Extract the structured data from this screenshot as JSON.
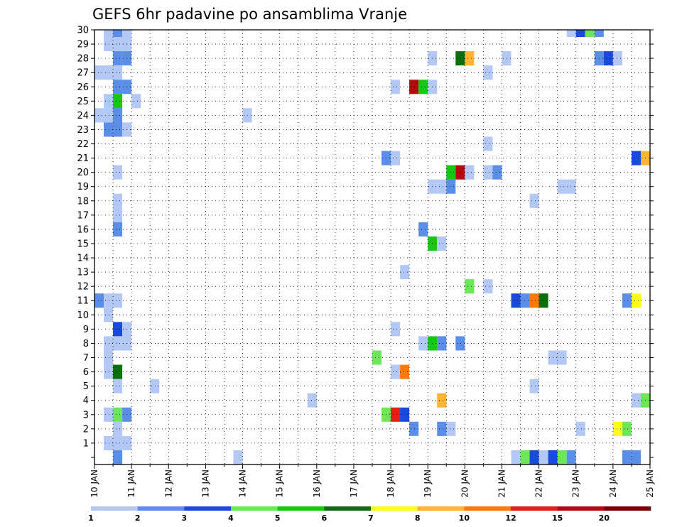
{
  "chart_data": {
    "type": "heatmap",
    "title": "GEFS 6hr padavine po ansamblima Vranje",
    "xlabel": "",
    "ylabel": "",
    "x_tick_labels": [
      "10 JAN",
      "11 JAN",
      "12 JAN",
      "13 JAN",
      "14 JAN",
      "15 JAN",
      "16 JAN",
      "17 JAN",
      "18 JAN",
      "19 JAN",
      "20 JAN",
      "21 JAN",
      "22 JAN",
      "23 JAN",
      "24 JAN",
      "25 JAN"
    ],
    "y_tick_labels": [
      "1",
      "2",
      "3",
      "4",
      "5",
      "6",
      "7",
      "8",
      "9",
      "10",
      "11",
      "12",
      "13",
      "14",
      "15",
      "16",
      "17",
      "18",
      "19",
      "20",
      "21",
      "22",
      "23",
      "24",
      "25",
      "26",
      "27",
      "28",
      "29",
      "30"
    ],
    "xlim_days": [
      10,
      25
    ],
    "ylim_members": [
      0,
      30
    ],
    "time_step_hours": 6,
    "grid": true,
    "colorbar": {
      "position": "bottom",
      "tick_labels": [
        "1",
        "2",
        "3",
        "4",
        "5",
        "6",
        "7",
        "8",
        "10",
        "12",
        "15",
        "20"
      ],
      "colors": [
        "#b4c8f5",
        "#5b8ee6",
        "#1a4ad9",
        "#6ee65a",
        "#14c814",
        "#0a6e0a",
        "#ffff14",
        "#ffb432",
        "#ff780a",
        "#e61e14",
        "#b40a0a",
        "#780000"
      ]
    },
    "cells": [
      {
        "day": 10.25,
        "member": 30,
        "level": 1
      },
      {
        "day": 10.5,
        "member": 30,
        "level": 2
      },
      {
        "day": 10.75,
        "member": 30,
        "level": 1
      },
      {
        "day": 10.25,
        "member": 29,
        "level": 1
      },
      {
        "day": 10.5,
        "member": 29,
        "level": 1
      },
      {
        "day": 10.75,
        "member": 29,
        "level": 1
      },
      {
        "day": 10.5,
        "member": 28,
        "level": 2
      },
      {
        "day": 10.75,
        "member": 28,
        "level": 2
      },
      {
        "day": 10.0,
        "member": 27,
        "level": 1
      },
      {
        "day": 10.25,
        "member": 27,
        "level": 1
      },
      {
        "day": 10.5,
        "member": 27,
        "level": 1
      },
      {
        "day": 10.5,
        "member": 26,
        "level": 2
      },
      {
        "day": 10.75,
        "member": 26,
        "level": 2
      },
      {
        "day": 10.25,
        "member": 25,
        "level": 1
      },
      {
        "day": 10.5,
        "member": 25,
        "level": 5
      },
      {
        "day": 11.0,
        "member": 25,
        "level": 1
      },
      {
        "day": 10.0,
        "member": 24,
        "level": 1
      },
      {
        "day": 10.25,
        "member": 24,
        "level": 1
      },
      {
        "day": 10.5,
        "member": 24,
        "level": 2
      },
      {
        "day": 10.25,
        "member": 23,
        "level": 2
      },
      {
        "day": 10.5,
        "member": 23,
        "level": 2
      },
      {
        "day": 10.75,
        "member": 23,
        "level": 1
      },
      {
        "day": 10.5,
        "member": 20,
        "level": 1
      },
      {
        "day": 10.5,
        "member": 18,
        "level": 1
      },
      {
        "day": 10.5,
        "member": 17,
        "level": 1
      },
      {
        "day": 10.5,
        "member": 16,
        "level": 2
      },
      {
        "day": 10.0,
        "member": 11,
        "level": 2
      },
      {
        "day": 10.25,
        "member": 11,
        "level": 1
      },
      {
        "day": 10.5,
        "member": 11,
        "level": 1
      },
      {
        "day": 10.25,
        "member": 10,
        "level": 1
      },
      {
        "day": 10.5,
        "member": 9,
        "level": 3
      },
      {
        "day": 10.75,
        "member": 9,
        "level": 1
      },
      {
        "day": 10.25,
        "member": 8,
        "level": 1
      },
      {
        "day": 10.5,
        "member": 8,
        "level": 1
      },
      {
        "day": 10.75,
        "member": 8,
        "level": 1
      },
      {
        "day": 10.25,
        "member": 7,
        "level": 1
      },
      {
        "day": 10.25,
        "member": 6,
        "level": 1
      },
      {
        "day": 10.5,
        "member": 6,
        "level": 6
      },
      {
        "day": 10.5,
        "member": 5,
        "level": 1
      },
      {
        "day": 10.25,
        "member": 3,
        "level": 1
      },
      {
        "day": 10.5,
        "member": 3,
        "level": 4
      },
      {
        "day": 10.75,
        "member": 3,
        "level": 2
      },
      {
        "day": 10.5,
        "member": 2,
        "level": 1
      },
      {
        "day": 10.25,
        "member": 1,
        "level": 1
      },
      {
        "day": 10.5,
        "member": 1,
        "level": 1
      },
      {
        "day": 10.75,
        "member": 1,
        "level": 1
      },
      {
        "day": 10.5,
        "member": 0,
        "level": 2
      },
      {
        "day": 11.5,
        "member": 5,
        "level": 1
      },
      {
        "day": 14.0,
        "member": 24,
        "level": 1
      },
      {
        "day": 13.75,
        "member": 0,
        "level": 1
      },
      {
        "day": 15.75,
        "member": 4,
        "level": 1
      },
      {
        "day": 17.5,
        "member": 7,
        "level": 4
      },
      {
        "day": 17.75,
        "member": 21,
        "level": 2
      },
      {
        "day": 18.0,
        "member": 21,
        "level": 1
      },
      {
        "day": 18.0,
        "member": 26,
        "level": 1
      },
      {
        "day": 18.0,
        "member": 9,
        "level": 1
      },
      {
        "day": 18.0,
        "member": 6,
        "level": 1
      },
      {
        "day": 18.25,
        "member": 6,
        "level": 9
      },
      {
        "day": 17.75,
        "member": 3,
        "level": 4
      },
      {
        "day": 18.0,
        "member": 3,
        "level": 10
      },
      {
        "day": 18.25,
        "member": 3,
        "level": 3
      },
      {
        "day": 18.25,
        "member": 13,
        "level": 1
      },
      {
        "day": 18.5,
        "member": 26,
        "level": 11
      },
      {
        "day": 18.75,
        "member": 26,
        "level": 5
      },
      {
        "day": 19.0,
        "member": 26,
        "level": 1
      },
      {
        "day": 18.5,
        "member": 2,
        "level": 2
      },
      {
        "day": 18.75,
        "member": 16,
        "level": 2
      },
      {
        "day": 18.75,
        "member": 8,
        "level": 1
      },
      {
        "day": 19.0,
        "member": 8,
        "level": 5
      },
      {
        "day": 19.25,
        "member": 8,
        "level": 2
      },
      {
        "day": 19.0,
        "member": 28,
        "level": 1
      },
      {
        "day": 19.0,
        "member": 19,
        "level": 1
      },
      {
        "day": 19.25,
        "member": 19,
        "level": 1
      },
      {
        "day": 19.5,
        "member": 19,
        "level": 2
      },
      {
        "day": 19.0,
        "member": 15,
        "level": 5
      },
      {
        "day": 19.25,
        "member": 15,
        "level": 1
      },
      {
        "day": 19.25,
        "member": 4,
        "level": 8
      },
      {
        "day": 19.25,
        "member": 2,
        "level": 2
      },
      {
        "day": 19.5,
        "member": 2,
        "level": 1
      },
      {
        "day": 19.5,
        "member": 20,
        "level": 5
      },
      {
        "day": 19.75,
        "member": 20,
        "level": 11
      },
      {
        "day": 20.0,
        "member": 20,
        "level": 1
      },
      {
        "day": 19.75,
        "member": 28,
        "level": 6
      },
      {
        "day": 20.0,
        "member": 28,
        "level": 8
      },
      {
        "day": 19.75,
        "member": 8,
        "level": 2
      },
      {
        "day": 20.0,
        "member": 12,
        "level": 4
      },
      {
        "day": 20.5,
        "member": 27,
        "level": 1
      },
      {
        "day": 20.5,
        "member": 22,
        "level": 1
      },
      {
        "day": 20.5,
        "member": 20,
        "level": 1
      },
      {
        "day": 20.75,
        "member": 20,
        "level": 2
      },
      {
        "day": 20.5,
        "member": 12,
        "level": 1
      },
      {
        "day": 21.0,
        "member": 28,
        "level": 1
      },
      {
        "day": 21.25,
        "member": 11,
        "level": 3
      },
      {
        "day": 21.5,
        "member": 11,
        "level": 2
      },
      {
        "day": 21.75,
        "member": 11,
        "level": 9
      },
      {
        "day": 22.0,
        "member": 11,
        "level": 6
      },
      {
        "day": 21.25,
        "member": 0,
        "level": 1
      },
      {
        "day": 21.5,
        "member": 0,
        "level": 4
      },
      {
        "day": 21.75,
        "member": 0,
        "level": 3
      },
      {
        "day": 22.0,
        "member": 0,
        "level": 1
      },
      {
        "day": 22.25,
        "member": 0,
        "level": 3
      },
      {
        "day": 22.5,
        "member": 0,
        "level": 4
      },
      {
        "day": 22.75,
        "member": 0,
        "level": 2
      },
      {
        "day": 21.75,
        "member": 18,
        "level": 1
      },
      {
        "day": 21.75,
        "member": 5,
        "level": 1
      },
      {
        "day": 22.25,
        "member": 7,
        "level": 1
      },
      {
        "day": 22.5,
        "member": 7,
        "level": 1
      },
      {
        "day": 22.5,
        "member": 19,
        "level": 1
      },
      {
        "day": 22.75,
        "member": 19,
        "level": 1
      },
      {
        "day": 22.75,
        "member": 30,
        "level": 1
      },
      {
        "day": 23.0,
        "member": 30,
        "level": 3
      },
      {
        "day": 23.25,
        "member": 30,
        "level": 4
      },
      {
        "day": 23.5,
        "member": 30,
        "level": 2
      },
      {
        "day": 23.0,
        "member": 2,
        "level": 1
      },
      {
        "day": 23.5,
        "member": 28,
        "level": 2
      },
      {
        "day": 23.75,
        "member": 28,
        "level": 3
      },
      {
        "day": 24.0,
        "member": 28,
        "level": 1
      },
      {
        "day": 24.0,
        "member": 2,
        "level": 7
      },
      {
        "day": 24.25,
        "member": 2,
        "level": 4
      },
      {
        "day": 24.25,
        "member": 11,
        "level": 2
      },
      {
        "day": 24.5,
        "member": 11,
        "level": 7
      },
      {
        "day": 24.5,
        "member": 21,
        "level": 3
      },
      {
        "day": 24.75,
        "member": 21,
        "level": 8
      },
      {
        "day": 24.5,
        "member": 4,
        "level": 1
      },
      {
        "day": 24.75,
        "member": 4,
        "level": 4
      },
      {
        "day": 24.25,
        "member": 0,
        "level": 2
      },
      {
        "day": 24.5,
        "member": 0,
        "level": 2
      }
    ]
  }
}
